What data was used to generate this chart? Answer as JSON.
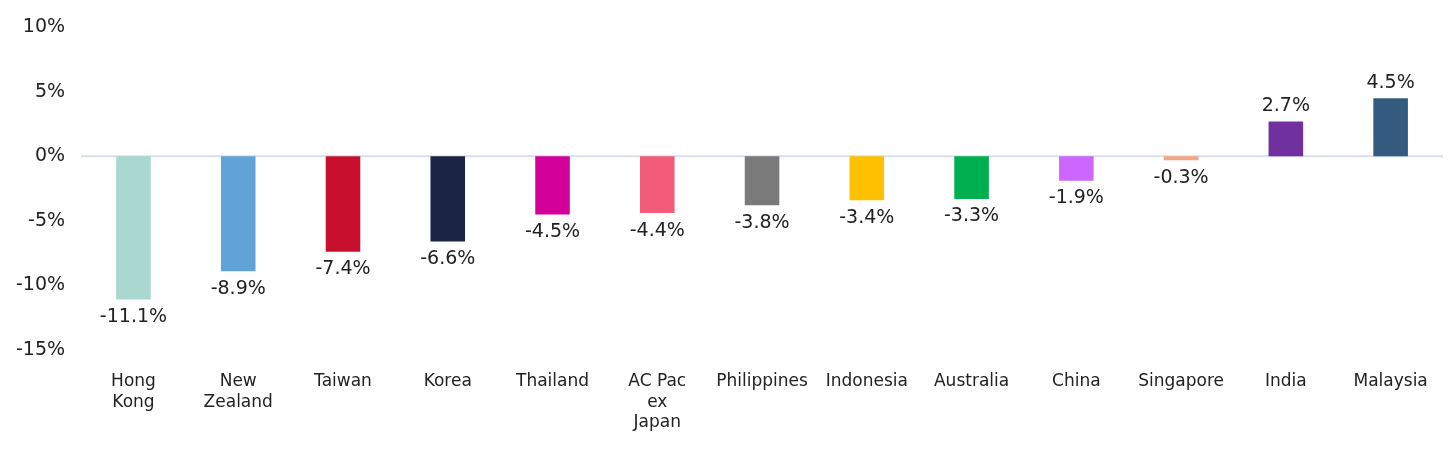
{
  "chart_data": {
    "type": "bar",
    "categories": [
      "Hong Kong",
      "New Zealand",
      "Taiwan",
      "Korea",
      "Thailand",
      "AC Pac ex Japan",
      "Philippines",
      "Indonesia",
      "Australia",
      "China",
      "Singapore",
      "India",
      "Malaysia"
    ],
    "values": [
      -11.1,
      -8.9,
      -7.4,
      -6.6,
      -4.5,
      -4.4,
      -3.8,
      -3.4,
      -3.3,
      -1.9,
      -0.3,
      2.7,
      4.5
    ],
    "value_labels": [
      "-11.1%",
      "-8.9%",
      "-7.4%",
      "-6.6%",
      "-4.5%",
      "-4.4%",
      "-3.8%",
      "-3.4%",
      "-3.3%",
      "-1.9%",
      "-0.3%",
      "2.7%",
      "4.5%"
    ],
    "colors": [
      "#a8d8d0",
      "#5fa3d9",
      "#c8102e",
      "#1a2445",
      "#d4009a",
      "#f25c78",
      "#7a7a7a",
      "#ffc000",
      "#00b050",
      "#cc66ff",
      "#f4a582",
      "#7030a0",
      "#335b80"
    ],
    "ylim": [
      -15,
      10
    ],
    "yticks": [
      {
        "value": -15,
        "label": "-15%"
      },
      {
        "value": -10,
        "label": "-10%"
      },
      {
        "value": -5,
        "label": "-5%"
      },
      {
        "value": 0,
        "label": "0%"
      },
      {
        "value": 5,
        "label": "5%"
      },
      {
        "value": 10,
        "label": "10%"
      }
    ],
    "ref_lines": [
      {
        "axis": "y",
        "value": 0,
        "color": "#d6dff0"
      }
    ],
    "grid": false,
    "legend": false
  }
}
